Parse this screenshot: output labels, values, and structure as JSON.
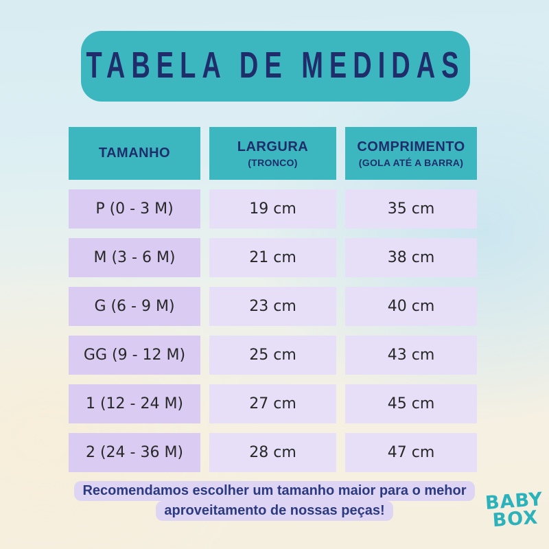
{
  "page": {
    "title_banner": "Tabela de Medidas"
  },
  "table": {
    "headers": [
      {
        "label": "TAMANHO",
        "sub": ""
      },
      {
        "label": "LARGURA",
        "sub": "(TRONCO)"
      },
      {
        "label": "COMPRIMENTO",
        "sub": "(GOLA ATÉ A BARRA)"
      }
    ],
    "rows": [
      {
        "size": "P (0 - 3 M)",
        "largura": "19 cm",
        "comprimento": "35 cm"
      },
      {
        "size": "M (3 - 6 M)",
        "largura": "21 cm",
        "comprimento": "38 cm"
      },
      {
        "size": "G (6 - 9 M)",
        "largura": "23 cm",
        "comprimento": "40 cm"
      },
      {
        "size": "GG (9 - 12 M)",
        "largura": "25 cm",
        "comprimento": "43 cm"
      },
      {
        "size": "1 (12 - 24 M)",
        "largura": "27 cm",
        "comprimento": "45 cm"
      },
      {
        "size": "2 (24 - 36 M)",
        "largura": "28 cm",
        "comprimento": "47 cm"
      }
    ]
  },
  "note": {
    "line1": "Recomendamos escolher um tamanho maior para o mehor",
    "line2": "aproveitamento de nossas peças!"
  },
  "logo": {
    "line1": "BABY",
    "line2": "BOX"
  },
  "colors": {
    "teal": "#3cb7c0",
    "navy": "#1f2d6b",
    "lavender_dark": "#d9cbf2",
    "lavender_light": "#e7def7",
    "note_bg": "#ded4f4",
    "note_text": "#2c3a80",
    "logo_teal": "#2bb2ba",
    "cell_text": "#272727",
    "bg_top": "#d8ecf2",
    "bg_bottom": "#f5efe0"
  },
  "chart_data": {
    "type": "table",
    "title": "Tabela de Medidas",
    "columns": [
      "TAMANHO",
      "LARGURA (TRONCO)",
      "COMPRIMENTO (GOLA ATÉ A BARRA)"
    ],
    "rows": [
      [
        "P (0 - 3 M)",
        "19 cm",
        "35 cm"
      ],
      [
        "M (3 - 6 M)",
        "21 cm",
        "38 cm"
      ],
      [
        "G (6 - 9 M)",
        "23 cm",
        "40 cm"
      ],
      [
        "GG (9 - 12 M)",
        "25 cm",
        "43 cm"
      ],
      [
        "1 (12 - 24 M)",
        "27 cm",
        "45 cm"
      ],
      [
        "2 (24 - 36 M)",
        "28 cm",
        "47 cm"
      ]
    ],
    "note": "Recomendamos escolher um tamanho maior para o mehor aproveitamento de nossas peças!"
  }
}
